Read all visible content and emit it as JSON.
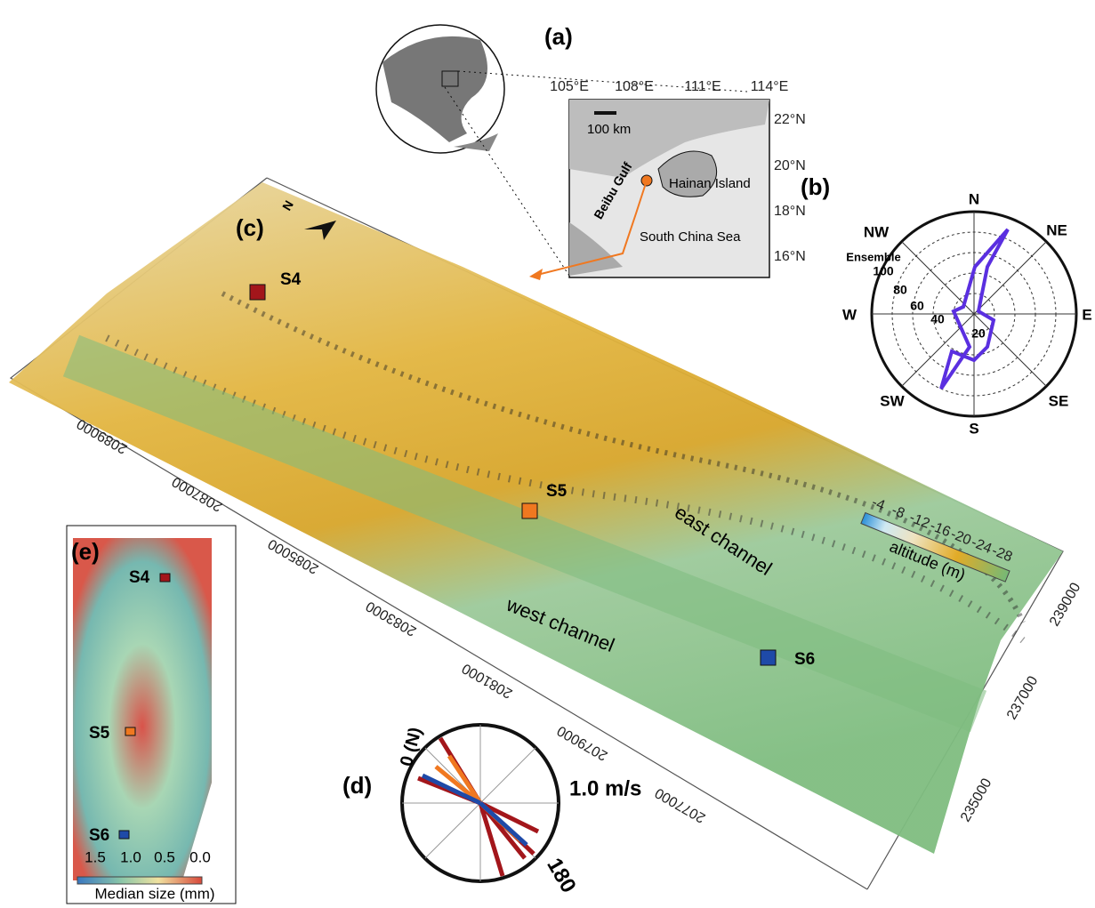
{
  "panel_a": {
    "label": "(a)",
    "lon_labels": [
      "105°E",
      "108°E",
      "111°E",
      "114°E"
    ],
    "lat_labels": [
      "22°N",
      "20°N",
      "18°N",
      "16°N"
    ],
    "scale": "100 km",
    "places": [
      "Beibu Gulf",
      "Hainan Island",
      "South China Sea"
    ]
  },
  "panel_b": {
    "label": "(b)",
    "directions": [
      "N",
      "NE",
      "E",
      "SE",
      "S",
      "SW",
      "W",
      "NW"
    ],
    "ring_title": "Ensemble",
    "ring_labels": [
      "100",
      "80",
      "60",
      "40",
      "20"
    ]
  },
  "panel_c": {
    "label": "(c)",
    "north": "N",
    "stations": [
      "S4",
      "S5",
      "S6"
    ],
    "channels": [
      "east channel",
      "west channel"
    ],
    "colorbar_ticks": [
      "-4",
      "-8",
      "-12",
      "-16",
      "-20",
      "-24",
      "-28"
    ],
    "colorbar_title": "altitude (m)",
    "northing_labels": [
      "2089000",
      "2087000",
      "2085000",
      "2083000",
      "2081000",
      "2079000",
      "2077000"
    ],
    "easting_labels": [
      "239000",
      "237000",
      "235000"
    ]
  },
  "panel_d": {
    "label": "(d)",
    "north_label": "0 (N)",
    "speed_label": "1.0 m/s",
    "south_label": "180"
  },
  "panel_e": {
    "label": "(e)",
    "stations": [
      "S4",
      "S5",
      "S6"
    ],
    "colorbar_ticks": [
      "1.5",
      "1.0",
      "0.5",
      "0.0"
    ],
    "colorbar_title": "Median size (mm)"
  }
}
